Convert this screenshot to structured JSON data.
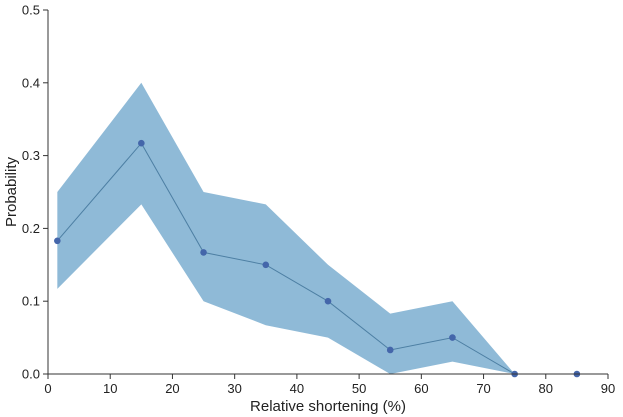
{
  "chart_data": {
    "type": "line",
    "title": "",
    "xlabel": "Relative shortening (%)",
    "ylabel": "Probability",
    "xlim": [
      0,
      90
    ],
    "ylim": [
      0,
      0.5
    ],
    "xticks": [
      0,
      10,
      20,
      30,
      40,
      50,
      60,
      70,
      80,
      90
    ],
    "yticks": [
      0.0,
      0.1,
      0.2,
      0.3,
      0.4,
      0.5
    ],
    "xtick_labels": [
      "0",
      "10",
      "20",
      "30",
      "40",
      "50",
      "60",
      "70",
      "80",
      "90"
    ],
    "ytick_labels": [
      "0.0",
      "0.1",
      "0.2",
      "0.3",
      "0.4",
      "0.5"
    ],
    "grid": false,
    "legend": "none",
    "colors": {
      "band": "#8fbad7",
      "line": "#4d7fa3",
      "marker": "#4466aa",
      "axis": "#333333"
    },
    "series": [
      {
        "x": [
          1.5,
          15,
          25,
          35,
          45,
          55,
          65,
          75,
          85
        ],
        "values": [
          0.183,
          0.317,
          0.167,
          0.15,
          0.1,
          0.033,
          0.05,
          0.0,
          0.0
        ],
        "lower": [
          0.117,
          0.233,
          0.1,
          0.067,
          0.05,
          0.0,
          0.017,
          0.0,
          0.0
        ],
        "upper": [
          0.25,
          0.4,
          0.25,
          0.233,
          0.15,
          0.083,
          0.1,
          0.0,
          0.0
        ]
      }
    ]
  }
}
